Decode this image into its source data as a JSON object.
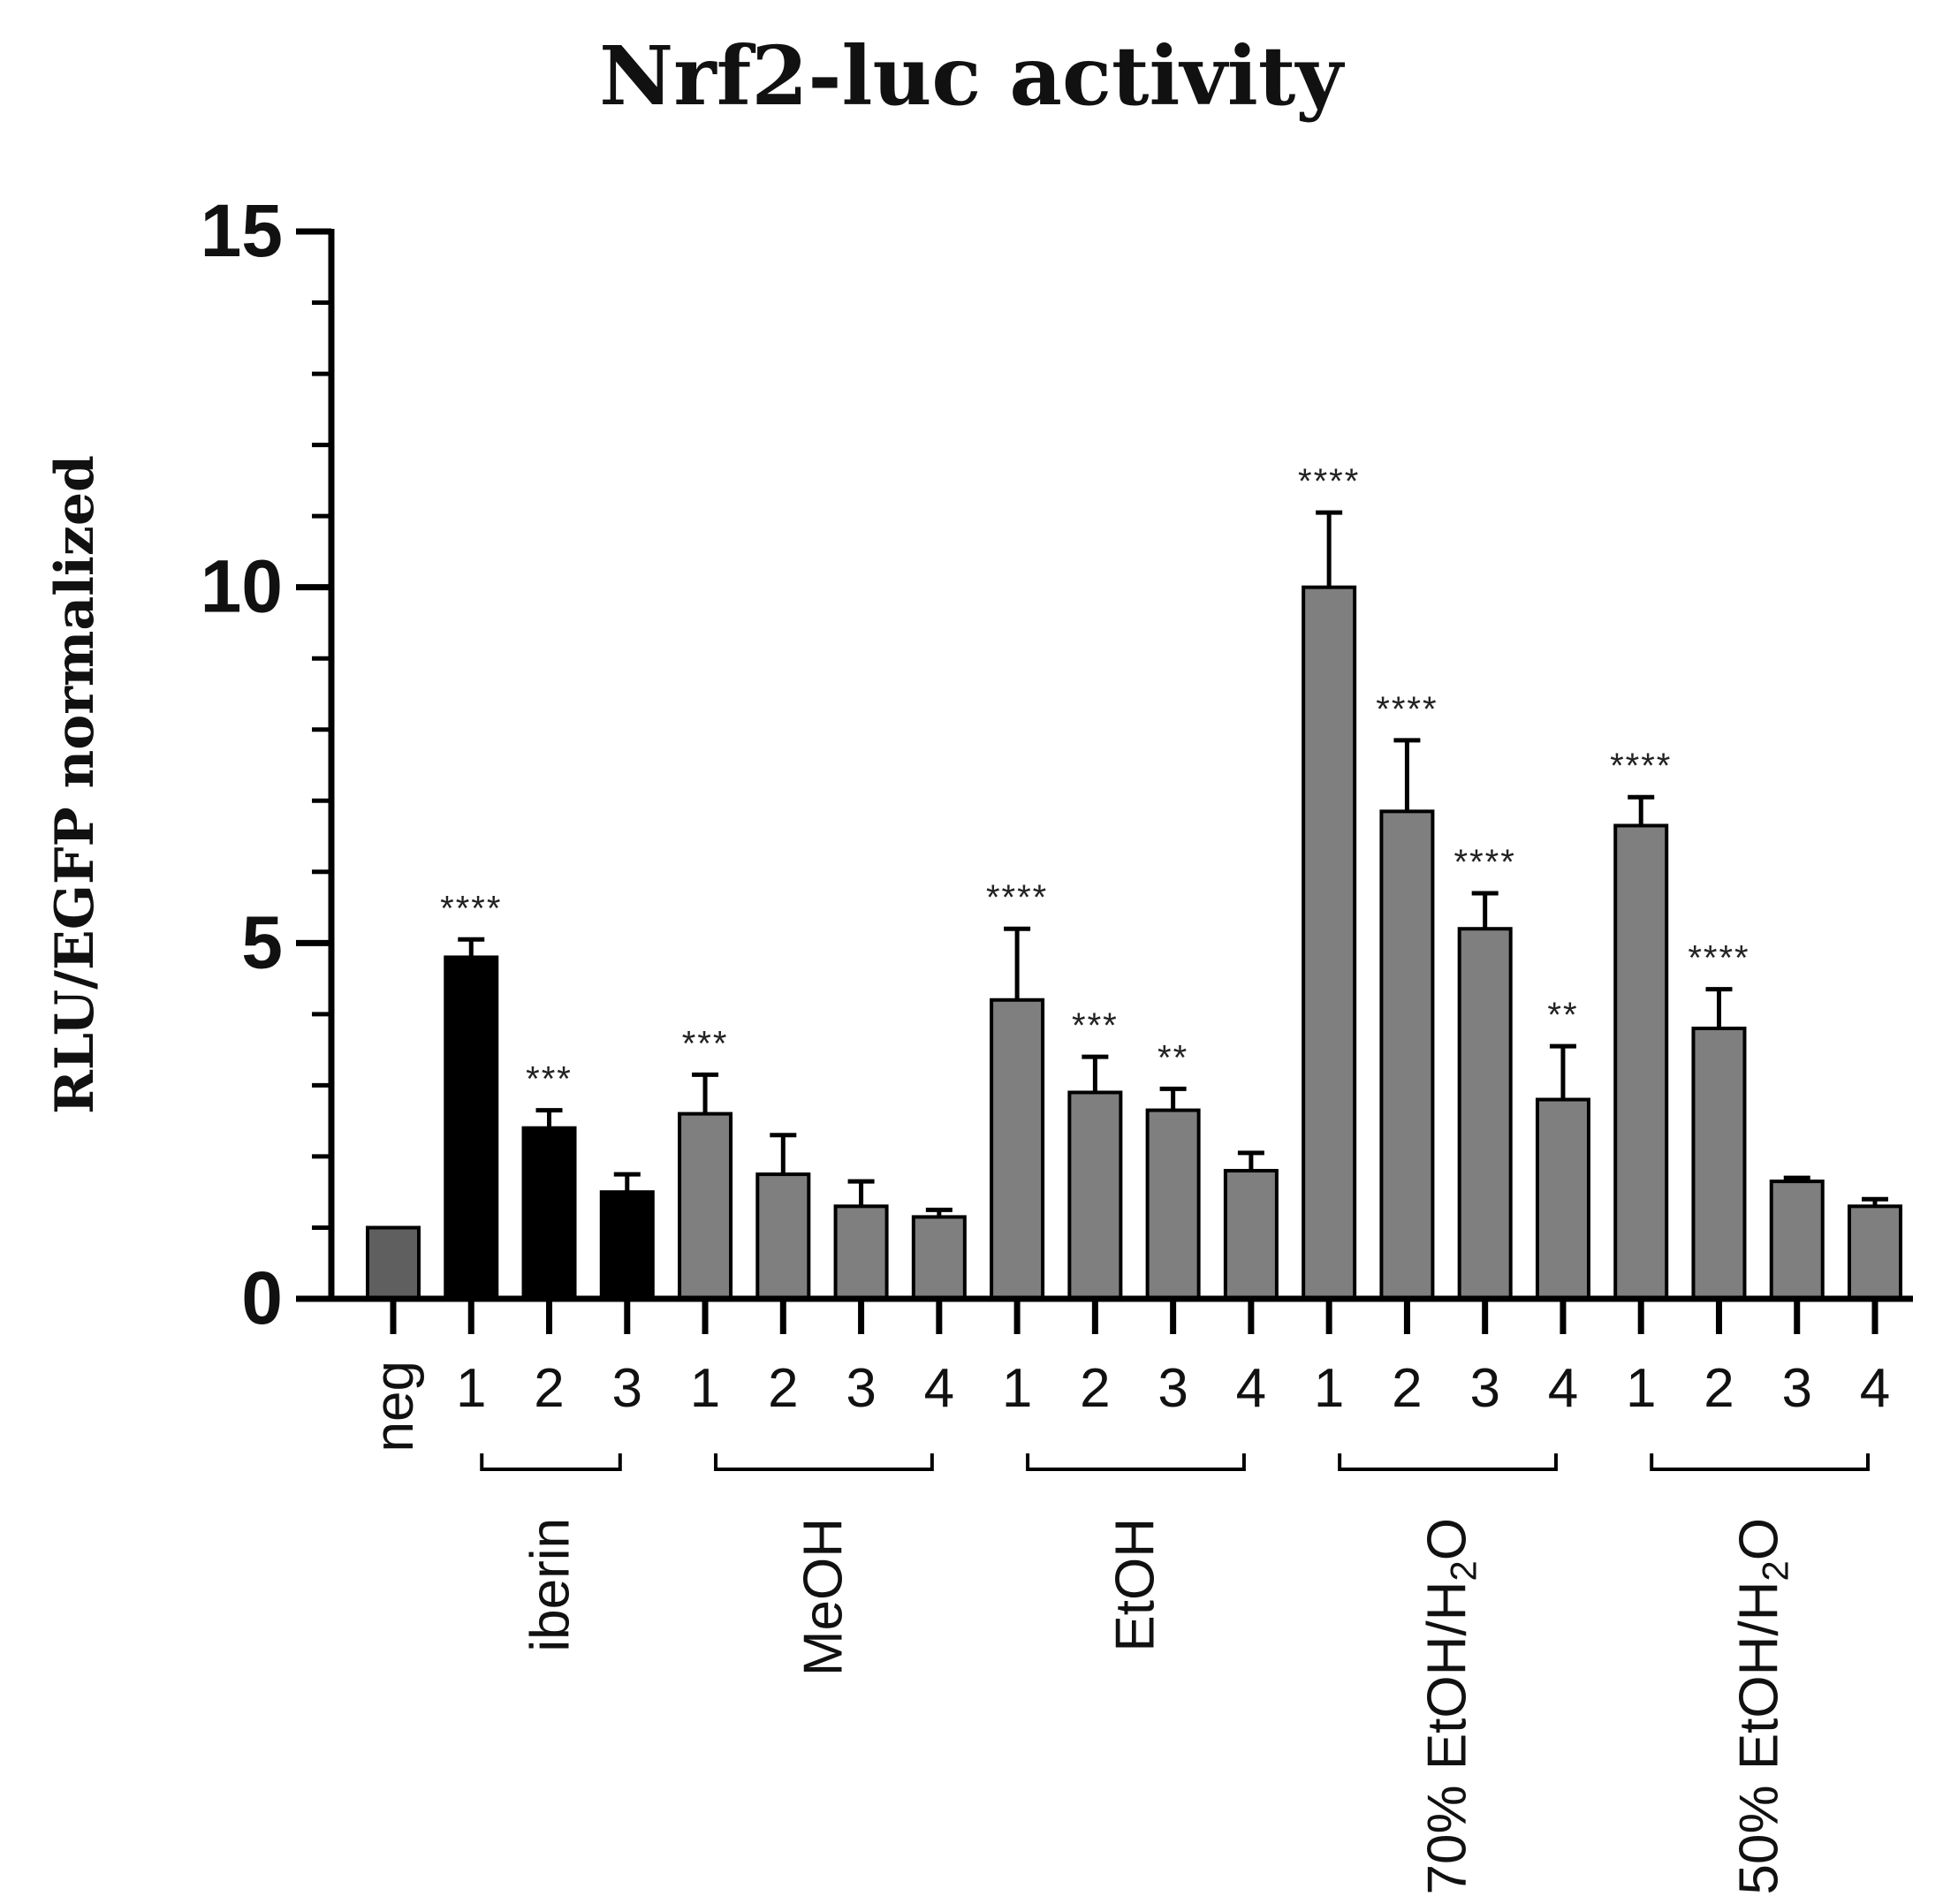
{
  "chart_data": {
    "type": "bar",
    "title": "Nrf2-luc activity",
    "ylabel": "RLU/EGFP normalized",
    "xlabel": "",
    "ylim": [
      0,
      15
    ],
    "yticks": [
      "0",
      "5",
      "10",
      "15"
    ],
    "categories": [
      "neg",
      "1",
      "2",
      "3",
      "1",
      "2",
      "3",
      "4",
      "1",
      "2",
      "3",
      "4",
      "1",
      "2",
      "3",
      "4",
      "1",
      "2",
      "3",
      "4"
    ],
    "values": [
      1.0,
      4.8,
      2.4,
      1.5,
      2.6,
      1.75,
      1.3,
      1.15,
      4.2,
      2.9,
      2.65,
      1.8,
      10.0,
      6.85,
      5.2,
      2.8,
      6.65,
      3.8,
      1.65,
      1.3
    ],
    "errors": [
      0,
      0.25,
      0.25,
      0.25,
      0.55,
      0.55,
      0.35,
      0.1,
      1.0,
      0.5,
      0.3,
      0.25,
      1.05,
      1.0,
      0.5,
      0.75,
      0.4,
      0.55,
      0.05,
      0.1
    ],
    "significance": [
      "",
      "****",
      "***",
      "",
      "***",
      "",
      "",
      "",
      "****",
      "***",
      "**",
      "",
      "****",
      "****",
      "****",
      "**",
      "****",
      "****",
      "",
      ""
    ],
    "groups": [
      {
        "label": "iberin",
        "start": 1,
        "end": 3
      },
      {
        "label": "MeOH",
        "start": 4,
        "end": 7
      },
      {
        "label": "EtOH",
        "start": 8,
        "end": 11
      },
      {
        "label": "70% EtOH/H2O",
        "start": 12,
        "end": 15
      },
      {
        "label": "50% EtOH/H2O",
        "start": 16,
        "end": 19
      }
    ],
    "colors": {
      "neg": "#5f5f5f",
      "iberin": "#000000",
      "extract": "#7f7f7f"
    }
  }
}
